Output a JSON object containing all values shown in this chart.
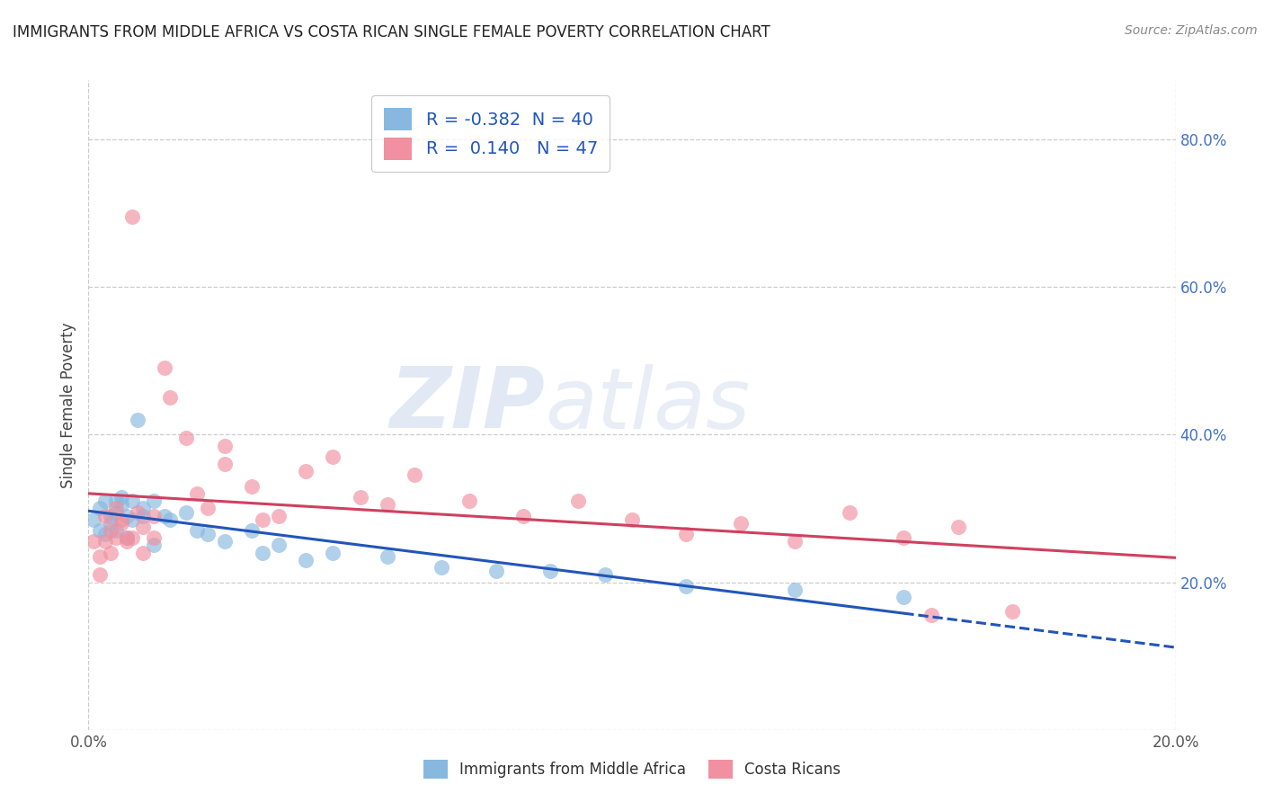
{
  "title": "IMMIGRANTS FROM MIDDLE AFRICA VS COSTA RICAN SINGLE FEMALE POVERTY CORRELATION CHART",
  "source": "Source: ZipAtlas.com",
  "ylabel": "Single Female Poverty",
  "y_ticks": [
    0.0,
    0.2,
    0.4,
    0.6,
    0.8
  ],
  "y_tick_labels": [
    "",
    "20.0%",
    "40.0%",
    "60.0%",
    "80.0%"
  ],
  "x_range": [
    0.0,
    0.2
  ],
  "y_range": [
    0.0,
    0.88
  ],
  "x_ticks": [
    0.0,
    0.2
  ],
  "x_tick_labels": [
    "0.0%",
    "20.0%"
  ],
  "legend_entries": [
    {
      "label": "R = -0.382  N = 40",
      "color": "#a8c8e8"
    },
    {
      "label": "R =  0.140   N = 47",
      "color": "#f0a8b8"
    }
  ],
  "series_blue": {
    "color": "#88b8e0",
    "trend_color": "#2255bb",
    "R": -0.382,
    "N": 40,
    "x": [
      0.001,
      0.002,
      0.002,
      0.003,
      0.003,
      0.004,
      0.004,
      0.005,
      0.005,
      0.005,
      0.006,
      0.006,
      0.007,
      0.007,
      0.008,
      0.008,
      0.009,
      0.01,
      0.01,
      0.012,
      0.012,
      0.014,
      0.015,
      0.018,
      0.02,
      0.022,
      0.025,
      0.03,
      0.032,
      0.035,
      0.04,
      0.045,
      0.055,
      0.065,
      0.075,
      0.085,
      0.095,
      0.11,
      0.13,
      0.15
    ],
    "y": [
      0.285,
      0.3,
      0.27,
      0.31,
      0.265,
      0.29,
      0.28,
      0.31,
      0.295,
      0.27,
      0.305,
      0.315,
      0.29,
      0.26,
      0.31,
      0.285,
      0.42,
      0.29,
      0.3,
      0.31,
      0.25,
      0.29,
      0.285,
      0.295,
      0.27,
      0.265,
      0.255,
      0.27,
      0.24,
      0.25,
      0.23,
      0.24,
      0.235,
      0.22,
      0.215,
      0.215,
      0.21,
      0.195,
      0.19,
      0.18
    ]
  },
  "series_pink": {
    "color": "#f090a0",
    "trend_color": "#d04060",
    "R": 0.14,
    "N": 47,
    "x": [
      0.001,
      0.002,
      0.002,
      0.003,
      0.003,
      0.004,
      0.004,
      0.005,
      0.005,
      0.006,
      0.006,
      0.007,
      0.007,
      0.008,
      0.008,
      0.009,
      0.01,
      0.01,
      0.012,
      0.012,
      0.014,
      0.015,
      0.018,
      0.02,
      0.022,
      0.025,
      0.025,
      0.03,
      0.032,
      0.035,
      0.04,
      0.045,
      0.05,
      0.055,
      0.06,
      0.07,
      0.08,
      0.09,
      0.1,
      0.11,
      0.12,
      0.13,
      0.14,
      0.15,
      0.155,
      0.16,
      0.17
    ],
    "y": [
      0.255,
      0.235,
      0.21,
      0.29,
      0.255,
      0.27,
      0.24,
      0.3,
      0.26,
      0.28,
      0.285,
      0.255,
      0.26,
      0.695,
      0.26,
      0.295,
      0.275,
      0.24,
      0.29,
      0.26,
      0.49,
      0.45,
      0.395,
      0.32,
      0.3,
      0.385,
      0.36,
      0.33,
      0.285,
      0.29,
      0.35,
      0.37,
      0.315,
      0.305,
      0.345,
      0.31,
      0.29,
      0.31,
      0.285,
      0.265,
      0.28,
      0.255,
      0.295,
      0.26,
      0.155,
      0.275,
      0.16
    ]
  },
  "watermark_zip": "ZIP",
  "watermark_atlas": "atlas",
  "background_color": "#ffffff",
  "grid_color": "#cccccc"
}
